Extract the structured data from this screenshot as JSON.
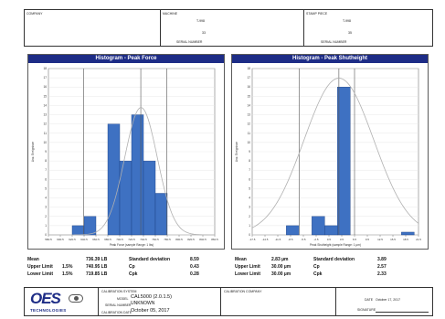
{
  "header": {
    "company_label": "COMPANY",
    "machine_label": "MACHINE",
    "machine_unit": "T-998",
    "machine_value": "33",
    "machine_serial_label": "SERIAL NUMBER",
    "setup_label": "STAMP PIECE",
    "setup_unit": "T-998",
    "setup_value": "35",
    "setup_serial_label": "SERIAL NUMBER"
  },
  "colors": {
    "title_bar": "#1d2c86",
    "bar_fill": "#3e71c2",
    "bar_stroke": "#1a3f80",
    "curve": "#b0b0b0",
    "ref_line": "#555555"
  },
  "chart_data": [
    {
      "type": "bar",
      "title": "Histogram - Peak Force",
      "ylabel": "Anz. Ereignisse",
      "xlabel": "Peak Force (sample Range: 1 lbs)",
      "ylim": [
        0,
        18
      ],
      "x_ticks": [
        "580.5",
        "600.5",
        "620.5",
        "640.5",
        "660.5",
        "680.5",
        "700.5",
        "720.5",
        "740.5",
        "760.5",
        "780.5",
        "800.5",
        "820.5",
        "840.5",
        "860.5"
      ],
      "y_ticks": [
        "0",
        "1",
        "2",
        "3",
        "4",
        "5",
        "6",
        "7",
        "8",
        "9",
        "10",
        "11",
        "12",
        "13",
        "14",
        "15",
        "16",
        "17",
        "18"
      ],
      "bins": [
        {
          "from": 600.5,
          "to": 620.5,
          "value": 0
        },
        {
          "from": 620.5,
          "to": 640.5,
          "value": 1
        },
        {
          "from": 640.5,
          "to": 660.5,
          "value": 2
        },
        {
          "from": 660.5,
          "to": 680.5,
          "value": 0
        },
        {
          "from": 680.5,
          "to": 700.5,
          "value": 12
        },
        {
          "from": 700.5,
          "to": 720.5,
          "value": 8
        },
        {
          "from": 720.5,
          "to": 740.5,
          "value": 13
        },
        {
          "from": 740.5,
          "to": 760.5,
          "value": 8
        },
        {
          "from": 760.5,
          "to": 780.5,
          "value": 4.5
        }
      ],
      "ref_lines": [
        640,
        736,
        780
      ],
      "mean": 736.39,
      "sd": 8.59
    },
    {
      "type": "bar",
      "title": "Histogram - Peak Shutheight",
      "ylabel": "Anz. Ereignisse",
      "xlabel": "Peak Shutheight (sample Range: 1 µm)",
      "ylim": [
        0,
        18
      ],
      "x_ticks": [
        "-17.5",
        "-14.5",
        "-11.5",
        "-8.5",
        "-5.5",
        "-2.5",
        "0.5",
        "3.5",
        "6.5",
        "9.5",
        "12.5",
        "15.5",
        "18.5",
        "21.5"
      ],
      "y_ticks": [
        "0",
        "1",
        "2",
        "3",
        "4",
        "5",
        "6",
        "7",
        "8",
        "9",
        "10",
        "11",
        "12",
        "13",
        "14",
        "15",
        "16",
        "17",
        "18"
      ],
      "bins": [
        {
          "from": -12.5,
          "to": -9.5,
          "value": 0
        },
        {
          "from": -9.5,
          "to": -6.5,
          "value": 1
        },
        {
          "from": -6.5,
          "to": -3.5,
          "value": 0
        },
        {
          "from": -3.5,
          "to": -0.5,
          "value": 2
        },
        {
          "from": -0.5,
          "to": 2.5,
          "value": 1
        },
        {
          "from": 2.5,
          "to": 5.5,
          "value": 16
        },
        {
          "from": 5.5,
          "to": 8.5,
          "value": 0
        },
        {
          "from": 17.5,
          "to": 20.5,
          "value": 0.3
        }
      ],
      "ref_lines": [
        -6.5,
        2.83,
        6.5
      ],
      "mean": 2.83,
      "sd": 3.89
    }
  ],
  "stats_left": {
    "mean_label": "Mean",
    "mean_value": "736.39 LB",
    "ul_label": "Upper Limit",
    "ul_pct": "1.5%",
    "ul_value": "740.95 LB",
    "ll_label": "Lower Limit",
    "ll_pct": "1.5%",
    "ll_value": "719.85 LB",
    "sd_label": "Standard deviation",
    "sd_value": "8.59",
    "cp_label": "Cp",
    "cp_value": "0.43",
    "cpk_label": "Cpk",
    "cpk_value": "0.28"
  },
  "stats_right": {
    "mean_label": "Mean",
    "mean_value": "2.83 µm",
    "ul_label": "Upper Limit",
    "ul_value": "30.00 µm",
    "ll_label": "Lower Limit",
    "ll_value": "30.00 µm",
    "sd_label": "Standard deviation",
    "sd_value": "3.89",
    "cp_label": "Cp",
    "cp_value": "2.57",
    "cpk_label": "Cpk",
    "cpk_value": "2.33"
  },
  "footer": {
    "logo_text": "OES",
    "logo_sub": "TECHNOLOGIES",
    "calib_system_label": "CALIBRATION SYSTEM",
    "model_label": "MODEL",
    "model_value": "CAL5000 (2.0.1.5)",
    "serial_label": "SERIAL NUMBER",
    "serial_value": "UNKNOWN",
    "calib_date_label": "CALIBRATION DATE",
    "calib_date_value": "October 05, 2017",
    "calib_company_label": "CALIBRATION COMPANY",
    "date_label": "DATE",
    "date_value": "October 17, 2017",
    "signature_label": "SIGNATURE"
  }
}
